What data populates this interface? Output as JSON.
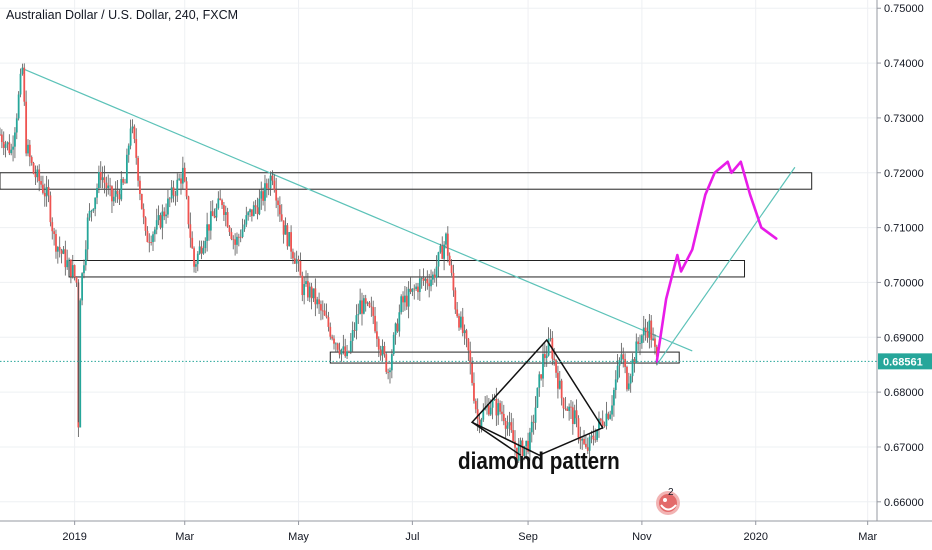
{
  "chart_data": {
    "type": "candlestick",
    "title": "Australian Dollar / U.S. Dollar, 240, FXCM",
    "annotation": "diamond pattern",
    "notification_count": "2",
    "y_axis": {
      "ticks": [
        "0.75000",
        "0.74000",
        "0.73000",
        "0.72000",
        "0.71000",
        "0.70000",
        "0.69000",
        "0.68000",
        "0.67000",
        "0.66000"
      ],
      "range": [
        0.6565,
        0.7515
      ],
      "position": "right"
    },
    "x_axis": {
      "ticks": [
        "2019",
        "Mar",
        "May",
        "Jul",
        "Sep",
        "Nov",
        "2020",
        "Mar"
      ],
      "range": [
        "2018-11-22",
        "2020-03-06"
      ]
    },
    "current_price": {
      "value": 0.68561,
      "label": "0.68561",
      "color": "#26a69a"
    },
    "price_path": [
      [
        "2018-11-22",
        0.727
      ],
      [
        "2018-11-28",
        0.724
      ],
      [
        "2018-12-01",
        0.731
      ],
      [
        "2018-12-04",
        0.739
      ],
      [
        "2018-12-06",
        0.725
      ],
      [
        "2018-12-10",
        0.72
      ],
      [
        "2018-12-14",
        0.718
      ],
      [
        "2018-12-18",
        0.715
      ],
      [
        "2018-12-21",
        0.708
      ],
      [
        "2018-12-24",
        0.706
      ],
      [
        "2018-12-27",
        0.704
      ],
      [
        "2018-12-31",
        0.702
      ],
      [
        "2019-01-02",
        0.7
      ],
      [
        "2019-01-03",
        0.6745
      ],
      [
        "2019-01-04",
        0.698
      ],
      [
        "2019-01-08",
        0.711
      ],
      [
        "2019-01-15",
        0.72
      ],
      [
        "2019-01-21",
        0.715
      ],
      [
        "2019-01-28",
        0.718
      ],
      [
        "2019-01-31",
        0.729
      ],
      [
        "2019-02-03",
        0.723
      ],
      [
        "2019-02-08",
        0.708
      ],
      [
        "2019-02-14",
        0.71
      ],
      [
        "2019-02-21",
        0.715
      ],
      [
        "2019-02-28",
        0.72
      ],
      [
        "2019-03-06",
        0.703
      ],
      [
        "2019-03-13",
        0.71
      ],
      [
        "2019-03-21",
        0.715
      ],
      [
        "2019-03-28",
        0.707
      ],
      [
        "2019-04-04",
        0.712
      ],
      [
        "2019-04-11",
        0.715
      ],
      [
        "2019-04-17",
        0.72
      ],
      [
        "2019-04-23",
        0.71
      ],
      [
        "2019-04-30",
        0.704
      ],
      [
        "2019-05-03",
        0.699
      ],
      [
        "2019-05-08",
        0.698
      ],
      [
        "2019-05-14",
        0.694
      ],
      [
        "2019-05-20",
        0.69
      ],
      [
        "2019-05-27",
        0.686
      ],
      [
        "2019-06-03",
        0.696
      ],
      [
        "2019-06-10",
        0.694
      ],
      [
        "2019-06-14",
        0.688
      ],
      [
        "2019-06-18",
        0.684
      ],
      [
        "2019-06-25",
        0.696
      ],
      [
        "2019-07-01",
        0.698
      ],
      [
        "2019-07-05",
        0.7
      ],
      [
        "2019-07-12",
        0.701
      ],
      [
        "2019-07-19",
        0.708
      ],
      [
        "2019-07-24",
        0.696
      ],
      [
        "2019-07-31",
        0.687
      ],
      [
        "2019-08-05",
        0.675
      ],
      [
        "2019-08-12",
        0.678
      ],
      [
        "2019-08-19",
        0.676
      ],
      [
        "2019-08-26",
        0.669
      ],
      [
        "2019-09-02",
        0.671
      ],
      [
        "2019-09-09",
        0.686
      ],
      [
        "2019-09-13",
        0.689
      ],
      [
        "2019-09-19",
        0.679
      ],
      [
        "2019-09-26",
        0.675
      ],
      [
        "2019-10-02",
        0.669
      ],
      [
        "2019-10-09",
        0.674
      ],
      [
        "2019-10-15",
        0.677
      ],
      [
        "2019-10-21",
        0.687
      ],
      [
        "2019-10-24",
        0.682
      ],
      [
        "2019-10-31",
        0.69
      ],
      [
        "2019-11-05",
        0.692
      ],
      [
        "2019-11-09",
        0.6856
      ]
    ],
    "projection": {
      "color": "#e81ce8",
      "points": [
        [
          "2019-11-09",
          0.6856
        ],
        [
          "2019-11-14",
          0.697
        ],
        [
          "2019-11-20",
          0.705
        ],
        [
          "2019-11-22",
          0.702
        ],
        [
          "2019-11-28",
          0.706
        ],
        [
          "2019-12-05",
          0.716
        ],
        [
          "2019-12-10",
          0.72
        ],
        [
          "2019-12-17",
          0.722
        ],
        [
          "2019-12-19",
          0.72
        ],
        [
          "2019-12-24",
          0.722
        ],
        [
          "2019-12-29",
          0.716
        ],
        [
          "2020-01-04",
          0.71
        ],
        [
          "2020-01-12",
          0.708
        ]
      ]
    },
    "trendlines": [
      {
        "color": "#5cc2b8",
        "from": [
          "2018-12-04",
          0.739
        ],
        "to": [
          "2019-11-28",
          0.6875
        ]
      },
      {
        "color": "#5cc2b8",
        "from": [
          "2019-11-09",
          0.685
        ],
        "to": [
          "2020-01-22",
          0.721
        ]
      }
    ],
    "zones": [
      {
        "x": [
          "2018-11-22",
          "2020-01-31"
        ],
        "y": [
          0.717,
          0.72
        ]
      },
      {
        "x": [
          "2018-12-29",
          "2019-12-26"
        ],
        "y": [
          0.701,
          0.704
        ]
      },
      {
        "x": [
          "2019-05-18",
          "2019-11-21"
        ],
        "y": [
          0.6853,
          0.6873
        ]
      }
    ],
    "diamond": {
      "color": "#111111",
      "points": [
        [
          "2019-08-02",
          0.6745
        ],
        [
          "2019-09-11",
          0.6895
        ],
        [
          "2019-10-11",
          0.6735
        ],
        [
          "2019-09-07",
          0.6685
        ]
      ],
      "extras": [
        [
          [
            "2019-08-02",
            0.6745
          ],
          [
            "2019-08-28",
            0.6685
          ]
        ]
      ]
    },
    "grid": true,
    "legend": "none"
  }
}
